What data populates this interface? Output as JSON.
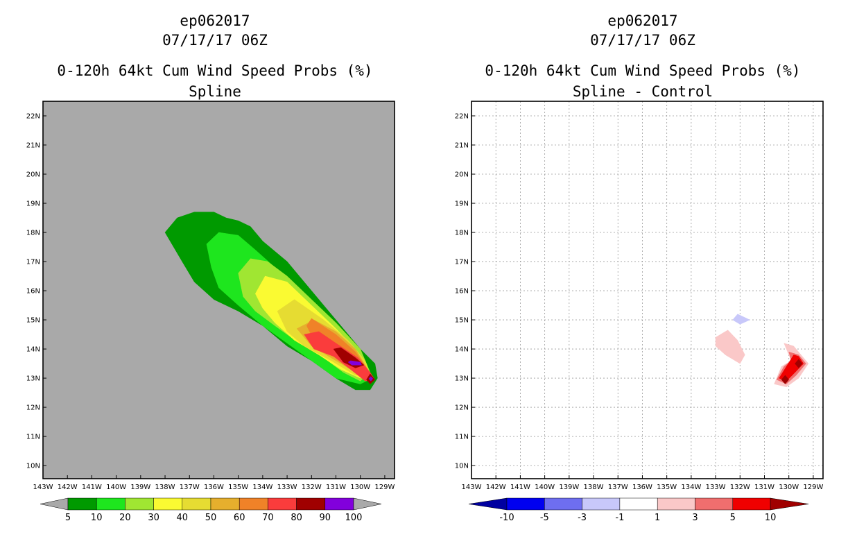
{
  "chart_data": [
    {
      "type": "contour-map",
      "storm_id": "ep062017",
      "datetime": "07/17/17 06Z",
      "title": "0-120h 64kt Cum Wind Speed Probs (%)",
      "subtitle": "Spline",
      "xlim": [
        -143.0,
        -128.6
      ],
      "ylim": [
        9.55,
        22.5
      ],
      "xticks": [
        "143W",
        "142W",
        "141W",
        "140W",
        "139W",
        "138W",
        "137W",
        "136W",
        "135W",
        "134W",
        "133W",
        "132W",
        "131W",
        "130W",
        "129W"
      ],
      "yticks": [
        "10N",
        "11N",
        "12N",
        "13N",
        "14N",
        "15N",
        "16N",
        "17N",
        "18N",
        "19N",
        "20N",
        "21N",
        "22N"
      ],
      "background": "#a9a9a9",
      "colorbar": {
        "labels": [
          "5",
          "10",
          "20",
          "30",
          "40",
          "50",
          "60",
          "70",
          "80",
          "90",
          "100"
        ],
        "colors": [
          "#009a00",
          "#1ee61e",
          "#a0e632",
          "#fafa32",
          "#e6dc32",
          "#e6af2d",
          "#f08228",
          "#fa3c3c",
          "#a00000",
          "#8200dc"
        ]
      },
      "contours": [
        {
          "level": "5",
          "color": "#009a00",
          "points": [
            [
              -138.0,
              18.0
            ],
            [
              -137.5,
              18.5
            ],
            [
              -136.8,
              18.7
            ],
            [
              -136.0,
              18.7
            ],
            [
              -135.5,
              18.5
            ],
            [
              -135.0,
              18.4
            ],
            [
              -134.5,
              18.2
            ],
            [
              -134.0,
              17.7
            ],
            [
              -133.0,
              17.0
            ],
            [
              -132.0,
              16.0
            ],
            [
              -131.0,
              15.0
            ],
            [
              -130.0,
              14.0
            ],
            [
              -129.4,
              13.5
            ],
            [
              -129.3,
              13.0
            ],
            [
              -129.6,
              12.6
            ],
            [
              -130.2,
              12.6
            ],
            [
              -131.0,
              13.0
            ],
            [
              -132.0,
              13.6
            ],
            [
              -133.0,
              14.1
            ],
            [
              -134.0,
              14.8
            ],
            [
              -135.0,
              15.3
            ],
            [
              -136.0,
              15.7
            ],
            [
              -136.8,
              16.3
            ],
            [
              -137.3,
              17.0
            ]
          ]
        },
        {
          "level": "10",
          "color": "#1ee61e",
          "points": [
            [
              -136.3,
              17.6
            ],
            [
              -135.8,
              18.0
            ],
            [
              -135.0,
              17.9
            ],
            [
              -134.3,
              17.4
            ],
            [
              -133.5,
              16.8
            ],
            [
              -132.5,
              16.0
            ],
            [
              -131.5,
              15.1
            ],
            [
              -130.5,
              14.3
            ],
            [
              -129.8,
              13.6
            ],
            [
              -129.5,
              13.0
            ],
            [
              -130.0,
              12.8
            ],
            [
              -131.0,
              13.0
            ],
            [
              -132.0,
              13.6
            ],
            [
              -133.0,
              14.2
            ],
            [
              -134.0,
              14.8
            ],
            [
              -135.0,
              15.5
            ],
            [
              -135.8,
              16.1
            ],
            [
              -136.1,
              16.8
            ]
          ]
        },
        {
          "level": "20",
          "color": "#a0e632",
          "points": [
            [
              -135.0,
              16.6
            ],
            [
              -134.5,
              17.1
            ],
            [
              -133.8,
              17.0
            ],
            [
              -133.0,
              16.5
            ],
            [
              -132.0,
              15.7
            ],
            [
              -131.0,
              14.9
            ],
            [
              -130.0,
              14.0
            ],
            [
              -129.6,
              13.2
            ],
            [
              -130.0,
              12.9
            ],
            [
              -130.7,
              13.2
            ],
            [
              -131.5,
              13.7
            ],
            [
              -132.5,
              14.2
            ],
            [
              -133.5,
              14.8
            ],
            [
              -134.3,
              15.3
            ],
            [
              -134.8,
              15.8
            ]
          ]
        },
        {
          "level": "30",
          "color": "#fafa32",
          "points": [
            [
              -134.3,
              15.9
            ],
            [
              -133.9,
              16.5
            ],
            [
              -133.0,
              16.3
            ],
            [
              -132.0,
              15.5
            ],
            [
              -131.0,
              14.7
            ],
            [
              -130.2,
              14.0
            ],
            [
              -129.7,
              13.3
            ],
            [
              -130.0,
              13.0
            ],
            [
              -130.8,
              13.3
            ],
            [
              -131.7,
              13.8
            ],
            [
              -132.7,
              14.3
            ],
            [
              -133.5,
              14.9
            ],
            [
              -134.0,
              15.4
            ]
          ]
        },
        {
          "level": "40",
          "color": "#e6dc32",
          "points": [
            [
              -133.4,
              15.3
            ],
            [
              -132.7,
              15.7
            ],
            [
              -131.5,
              15.0
            ],
            [
              -130.5,
              14.3
            ],
            [
              -129.8,
              13.6
            ],
            [
              -129.6,
              13.1
            ],
            [
              -130.2,
              13.1
            ],
            [
              -131.2,
              13.6
            ],
            [
              -132.3,
              14.1
            ],
            [
              -133.0,
              14.6
            ]
          ]
        },
        {
          "level": "50",
          "color": "#e6af2d",
          "points": [
            [
              -132.6,
              14.7
            ],
            [
              -131.9,
              15.0
            ],
            [
              -131.0,
              14.6
            ],
            [
              -130.2,
              14.0
            ],
            [
              -129.7,
              13.3
            ],
            [
              -130.2,
              13.2
            ],
            [
              -131.0,
              13.6
            ],
            [
              -132.0,
              14.1
            ]
          ]
        },
        {
          "level": "60",
          "color": "#f08228",
          "points": [
            [
              -132.2,
              14.8
            ],
            [
              -132.0,
              15.05
            ],
            [
              -131.0,
              14.5
            ],
            [
              -130.2,
              13.9
            ],
            [
              -129.7,
              13.3
            ],
            [
              -130.3,
              13.3
            ],
            [
              -131.2,
              13.8
            ],
            [
              -131.9,
              14.3
            ]
          ]
        },
        {
          "level": "70",
          "color": "#fa3c3c",
          "points": [
            [
              -132.3,
              14.5
            ],
            [
              -131.7,
              14.6
            ],
            [
              -131.0,
              14.2
            ],
            [
              -130.1,
              13.7
            ],
            [
              -129.6,
              13.2
            ],
            [
              -129.4,
              12.95
            ],
            [
              -129.8,
              12.9
            ],
            [
              -130.4,
              13.3
            ],
            [
              -131.1,
              13.75
            ],
            [
              -131.9,
              14.0
            ]
          ]
        },
        {
          "level": "80",
          "color": "#a00000",
          "points": [
            [
              -131.1,
              14.0
            ],
            [
              -130.8,
              14.05
            ],
            [
              -130.2,
              13.7
            ],
            [
              -129.85,
              13.45
            ],
            [
              -130.2,
              13.35
            ],
            [
              -130.7,
              13.55
            ]
          ]
        },
        {
          "level": "80",
          "color": "#a00000",
          "points": [
            [
              -129.75,
              12.95
            ],
            [
              -129.6,
              13.15
            ],
            [
              -129.4,
              12.95
            ],
            [
              -129.6,
              12.8
            ]
          ]
        },
        {
          "level": "90",
          "color": "#8200dc",
          "points": [
            [
              -130.5,
              13.55
            ],
            [
              -130.4,
              13.6
            ],
            [
              -130.0,
              13.55
            ],
            [
              -129.95,
              13.45
            ],
            [
              -130.35,
              13.45
            ]
          ]
        },
        {
          "level": "90",
          "color": "#8200dc",
          "points": [
            [
              -129.65,
              12.98
            ],
            [
              -129.57,
              13.06
            ],
            [
              -129.49,
              12.98
            ],
            [
              -129.57,
              12.9
            ]
          ]
        }
      ]
    },
    {
      "type": "contour-map",
      "storm_id": "ep062017",
      "datetime": "07/17/17 06Z",
      "title": "0-120h 64kt Cum Wind Speed Probs (%)",
      "subtitle": "Spline - Control",
      "xlim": [
        -143.0,
        -128.6
      ],
      "ylim": [
        9.55,
        22.5
      ],
      "xticks": [
        "143W",
        "142W",
        "141W",
        "140W",
        "139W",
        "138W",
        "137W",
        "136W",
        "135W",
        "134W",
        "133W",
        "132W",
        "131W",
        "130W",
        "129W"
      ],
      "yticks": [
        "10N",
        "11N",
        "12N",
        "13N",
        "14N",
        "15N",
        "16N",
        "17N",
        "18N",
        "19N",
        "20N",
        "21N",
        "22N"
      ],
      "background": "#ffffff",
      "grid": true,
      "colorbar": {
        "labels": [
          "-10",
          "-5",
          "-3",
          "-1",
          "1",
          "3",
          "5",
          "10"
        ],
        "colors": [
          "#0000a0",
          "#0000f0",
          "#6e6ef0",
          "#c8c8fa",
          "#ffffff",
          "#fac8c8",
          "#f06e6e",
          "#f00000",
          "#a00000"
        ]
      },
      "contours": [
        {
          "level": "-1",
          "color": "#c8c8fa",
          "points": [
            [
              -132.1,
              15.2
            ],
            [
              -131.6,
              15.0
            ],
            [
              -132.0,
              14.85
            ],
            [
              -132.3,
              15.0
            ]
          ]
        },
        {
          "level": "1",
          "color": "#fac8c8",
          "points": [
            [
              -133.0,
              14.4
            ],
            [
              -132.5,
              14.65
            ],
            [
              -132.1,
              14.3
            ],
            [
              -131.8,
              13.8
            ],
            [
              -132.0,
              13.5
            ],
            [
              -132.6,
              13.8
            ],
            [
              -133.0,
              14.1
            ]
          ]
        },
        {
          "level": "1",
          "color": "#fac8c8",
          "points": [
            [
              -130.2,
              14.2
            ],
            [
              -129.8,
              14.1
            ],
            [
              -129.2,
              13.5
            ],
            [
              -129.6,
              13.0
            ],
            [
              -130.1,
              12.7
            ],
            [
              -130.6,
              12.8
            ],
            [
              -130.3,
              13.4
            ],
            [
              -129.9,
              13.6
            ]
          ]
        },
        {
          "level": "3",
          "color": "#f06e6e",
          "points": [
            [
              -130.0,
              13.9
            ],
            [
              -129.6,
              13.8
            ],
            [
              -129.3,
              13.5
            ],
            [
              -129.7,
              13.1
            ],
            [
              -130.1,
              12.8
            ],
            [
              -130.5,
              12.95
            ],
            [
              -130.2,
              13.4
            ],
            [
              -129.9,
              13.6
            ]
          ]
        },
        {
          "level": "5",
          "color": "#f00000",
          "points": [
            [
              -129.8,
              13.8
            ],
            [
              -129.6,
              13.75
            ],
            [
              -129.4,
              13.5
            ],
            [
              -129.8,
              13.15
            ],
            [
              -130.1,
              12.9
            ],
            [
              -130.4,
              13.0
            ],
            [
              -130.1,
              13.4
            ]
          ]
        },
        {
          "level": "10",
          "color": "#a00000",
          "points": [
            [
              -129.6,
              13.65
            ],
            [
              -129.45,
              13.5
            ],
            [
              -129.6,
              13.35
            ],
            [
              -129.75,
              13.5
            ]
          ]
        },
        {
          "level": "10",
          "color": "#a00000",
          "points": [
            [
              -130.15,
              13.1
            ],
            [
              -130.0,
              12.95
            ],
            [
              -130.15,
              12.8
            ],
            [
              -130.3,
              12.95
            ]
          ]
        }
      ]
    }
  ]
}
